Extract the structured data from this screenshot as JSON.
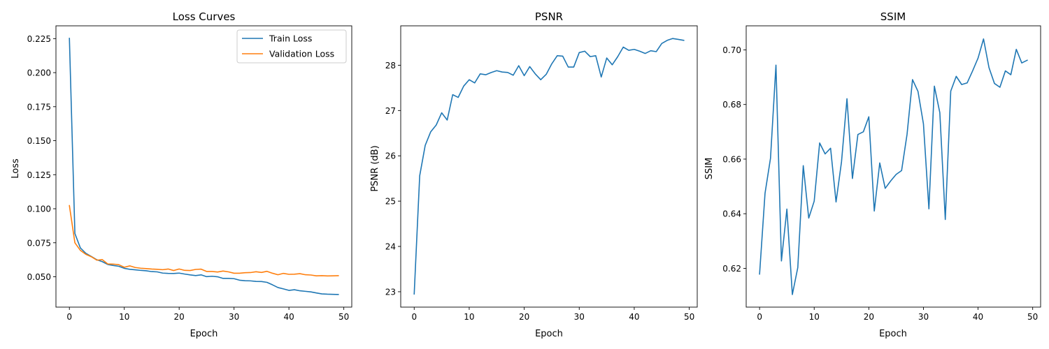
{
  "chart_data": [
    {
      "type": "line",
      "title": "Loss Curves",
      "xlabel": "Epoch",
      "ylabel": "Loss",
      "xlim": [
        -2.45,
        51.45
      ],
      "ylim": [
        0.0277,
        0.2344
      ],
      "xticks": [
        0,
        10,
        20,
        30,
        40,
        50
      ],
      "xtick_labels": [
        "0",
        "10",
        "20",
        "30",
        "40",
        "50"
      ],
      "yticks": [
        0.05,
        0.075,
        0.1,
        0.125,
        0.15,
        0.175,
        0.2,
        0.225
      ],
      "ytick_labels": [
        "0.050",
        "0.075",
        "0.100",
        "0.125",
        "0.150",
        "0.175",
        "0.200",
        "0.225"
      ],
      "grid": false,
      "legend": "top-right",
      "x": [
        0,
        1,
        2,
        3,
        4,
        5,
        6,
        7,
        8,
        9,
        10,
        11,
        12,
        13,
        14,
        15,
        16,
        17,
        18,
        19,
        20,
        21,
        22,
        23,
        24,
        25,
        26,
        27,
        28,
        29,
        30,
        31,
        32,
        33,
        34,
        35,
        36,
        37,
        38,
        39,
        40,
        41,
        42,
        43,
        44,
        45,
        46,
        47,
        48,
        49
      ],
      "series": [
        {
          "name": "Train Loss",
          "color": "#1f77b4",
          "values": [
            0.2252,
            0.0818,
            0.0712,
            0.0672,
            0.0649,
            0.0625,
            0.0611,
            0.059,
            0.0583,
            0.0577,
            0.0562,
            0.0555,
            0.0551,
            0.0547,
            0.0544,
            0.0538,
            0.0536,
            0.0527,
            0.0525,
            0.0524,
            0.0527,
            0.052,
            0.0514,
            0.0509,
            0.0514,
            0.0501,
            0.0504,
            0.05,
            0.0488,
            0.0488,
            0.0486,
            0.0475,
            0.0471,
            0.047,
            0.0466,
            0.0465,
            0.0459,
            0.0441,
            0.0421,
            0.0411,
            0.04,
            0.0405,
            0.0397,
            0.0393,
            0.0389,
            0.0381,
            0.0374,
            0.0372,
            0.0371,
            0.037
          ]
        },
        {
          "name": "Validation Loss",
          "color": "#ff7f0e",
          "values": [
            0.1023,
            0.075,
            0.0694,
            0.0665,
            0.0647,
            0.0622,
            0.0626,
            0.0594,
            0.0593,
            0.0589,
            0.057,
            0.058,
            0.0568,
            0.0563,
            0.056,
            0.0557,
            0.0555,
            0.0552,
            0.0557,
            0.0546,
            0.0557,
            0.0547,
            0.0546,
            0.0554,
            0.0556,
            0.0539,
            0.0539,
            0.0535,
            0.0542,
            0.0536,
            0.0526,
            0.0526,
            0.053,
            0.0531,
            0.0537,
            0.0532,
            0.054,
            0.0526,
            0.0515,
            0.0525,
            0.0518,
            0.0519,
            0.0523,
            0.0515,
            0.0513,
            0.0507,
            0.0508,
            0.0506,
            0.0507,
            0.0508
          ]
        }
      ]
    },
    {
      "type": "line",
      "title": "PSNR",
      "xlabel": "Epoch",
      "ylabel": "PSNR (dB)",
      "xlim": [
        -2.45,
        51.45
      ],
      "ylim": [
        22.66,
        28.87
      ],
      "xticks": [
        0,
        10,
        20,
        30,
        40,
        50
      ],
      "xtick_labels": [
        "0",
        "10",
        "20",
        "30",
        "40",
        "50"
      ],
      "yticks": [
        23,
        24,
        25,
        26,
        27,
        28
      ],
      "ytick_labels": [
        "23",
        "24",
        "25",
        "26",
        "27",
        "28"
      ],
      "grid": false,
      "x": [
        0,
        1,
        2,
        3,
        4,
        5,
        6,
        7,
        8,
        9,
        10,
        11,
        12,
        13,
        14,
        15,
        16,
        17,
        18,
        19,
        20,
        21,
        22,
        23,
        24,
        25,
        26,
        27,
        28,
        29,
        30,
        31,
        32,
        33,
        34,
        35,
        36,
        37,
        38,
        39,
        40,
        41,
        42,
        43,
        44,
        45,
        46,
        47,
        48,
        49
      ],
      "series": [
        {
          "name": "PSNR",
          "color": "#1f77b4",
          "values": [
            22.95,
            25.56,
            26.23,
            26.53,
            26.68,
            26.95,
            26.79,
            27.35,
            27.29,
            27.54,
            27.68,
            27.61,
            27.81,
            27.79,
            27.84,
            27.88,
            27.85,
            27.84,
            27.78,
            27.99,
            27.77,
            27.97,
            27.81,
            27.68,
            27.8,
            28.03,
            28.21,
            28.2,
            27.96,
            27.96,
            28.28,
            28.31,
            28.19,
            28.21,
            27.74,
            28.16,
            28.01,
            28.19,
            28.4,
            28.33,
            28.35,
            28.31,
            28.26,
            28.32,
            28.3,
            28.48,
            28.55,
            28.59,
            28.57,
            28.55
          ]
        }
      ]
    },
    {
      "type": "line",
      "title": "SSIM",
      "xlabel": "Epoch",
      "ylabel": "SSIM",
      "xlim": [
        -2.45,
        51.45
      ],
      "ylim": [
        0.6058,
        0.7088
      ],
      "xticks": [
        0,
        10,
        20,
        30,
        40,
        50
      ],
      "xtick_labels": [
        "0",
        "10",
        "20",
        "30",
        "40",
        "50"
      ],
      "yticks": [
        0.62,
        0.64,
        0.66,
        0.68,
        0.7
      ],
      "ytick_labels": [
        "0.62",
        "0.64",
        "0.66",
        "0.68",
        "0.70"
      ],
      "grid": false,
      "x": [
        0,
        1,
        2,
        3,
        4,
        5,
        6,
        7,
        8,
        9,
        10,
        11,
        12,
        13,
        14,
        15,
        16,
        17,
        18,
        19,
        20,
        21,
        22,
        23,
        24,
        25,
        26,
        27,
        28,
        29,
        30,
        31,
        32,
        33,
        34,
        35,
        36,
        37,
        38,
        39,
        40,
        41,
        42,
        43,
        44,
        45,
        46,
        47,
        48,
        49
      ],
      "series": [
        {
          "name": "SSIM",
          "color": "#1f77b4",
          "values": [
            0.6179,
            0.6475,
            0.6603,
            0.6944,
            0.6227,
            0.6417,
            0.6104,
            0.6203,
            0.6576,
            0.6384,
            0.6446,
            0.6659,
            0.6619,
            0.664,
            0.6443,
            0.659,
            0.6821,
            0.6529,
            0.669,
            0.67,
            0.6755,
            0.641,
            0.6586,
            0.6493,
            0.652,
            0.6544,
            0.6558,
            0.6691,
            0.6891,
            0.6848,
            0.6729,
            0.6418,
            0.6867,
            0.677,
            0.6379,
            0.6849,
            0.6903,
            0.6873,
            0.6879,
            0.6923,
            0.697,
            0.704,
            0.6935,
            0.6877,
            0.6863,
            0.6923,
            0.6909,
            0.7002,
            0.6952,
            0.6962
          ]
        }
      ]
    }
  ]
}
